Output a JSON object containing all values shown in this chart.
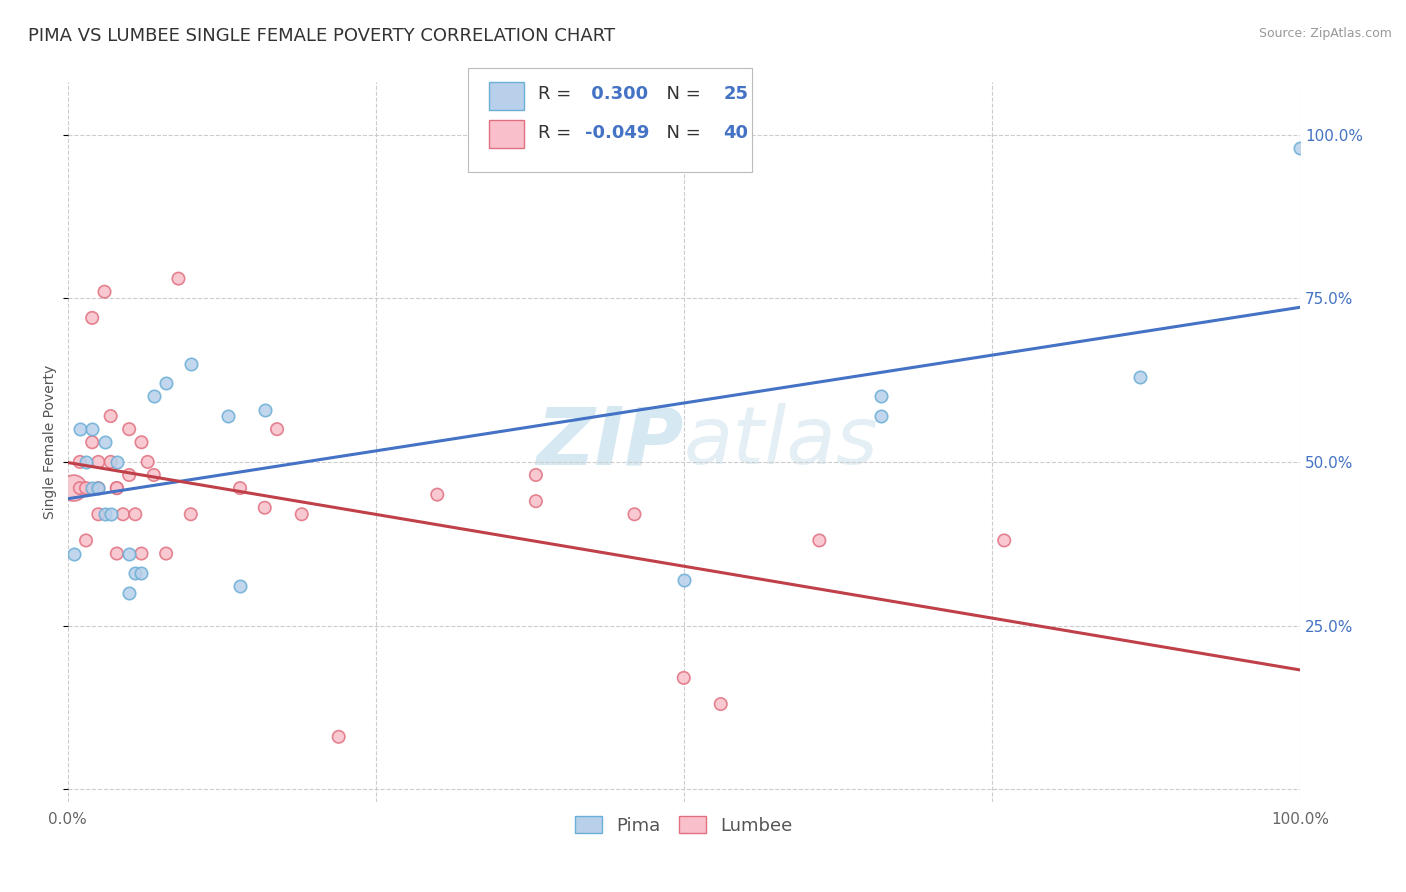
{
  "title": "PIMA VS LUMBEE SINGLE FEMALE POVERTY CORRELATION CHART",
  "source": "Source: ZipAtlas.com",
  "ylabel": "Single Female Poverty",
  "xlim": [
    0.0,
    1.0
  ],
  "ylim": [
    -0.02,
    1.08
  ],
  "xticks": [
    0.0,
    0.25,
    0.5,
    0.75,
    1.0
  ],
  "yticks": [
    0.0,
    0.25,
    0.5,
    0.75,
    1.0
  ],
  "xticklabels": [
    "0.0%",
    "",
    "",
    "",
    "100.0%"
  ],
  "yticklabels_right": [
    "",
    "25.0%",
    "50.0%",
    "75.0%",
    "100.0%"
  ],
  "watermark": "ZIPatlas",
  "pima_color": "#b8d0ea",
  "pima_edge_color": "#6baed6",
  "lumbee_color": "#f9c0cb",
  "lumbee_edge_color": "#e07080",
  "pima_line_color": "#4472c4",
  "lumbee_line_color": "#c0404a",
  "grid_color": "#cccccc",
  "legend_R_color": "#4472c4",
  "pima_R": 0.3,
  "pima_N": 25,
  "lumbee_R": -0.049,
  "lumbee_N": 40,
  "pima_scatter": [
    [
      0.005,
      0.36
    ],
    [
      0.01,
      0.55
    ],
    [
      0.015,
      0.5
    ],
    [
      0.02,
      0.55
    ],
    [
      0.02,
      0.46
    ],
    [
      0.025,
      0.46
    ],
    [
      0.03,
      0.53
    ],
    [
      0.03,
      0.42
    ],
    [
      0.035,
      0.42
    ],
    [
      0.04,
      0.5
    ],
    [
      0.05,
      0.36
    ],
    [
      0.05,
      0.3
    ],
    [
      0.055,
      0.33
    ],
    [
      0.06,
      0.33
    ],
    [
      0.07,
      0.6
    ],
    [
      0.08,
      0.62
    ],
    [
      0.1,
      0.65
    ],
    [
      0.13,
      0.57
    ],
    [
      0.14,
      0.31
    ],
    [
      0.16,
      0.58
    ],
    [
      0.5,
      0.32
    ],
    [
      0.66,
      0.57
    ],
    [
      0.66,
      0.6
    ],
    [
      0.87,
      0.63
    ],
    [
      1.0,
      0.98
    ]
  ],
  "lumbee_scatter": [
    [
      0.005,
      0.46
    ],
    [
      0.01,
      0.5
    ],
    [
      0.01,
      0.46
    ],
    [
      0.015,
      0.46
    ],
    [
      0.015,
      0.38
    ],
    [
      0.02,
      0.72
    ],
    [
      0.02,
      0.53
    ],
    [
      0.025,
      0.5
    ],
    [
      0.025,
      0.46
    ],
    [
      0.025,
      0.42
    ],
    [
      0.03,
      0.76
    ],
    [
      0.035,
      0.57
    ],
    [
      0.035,
      0.5
    ],
    [
      0.04,
      0.46
    ],
    [
      0.04,
      0.36
    ],
    [
      0.04,
      0.46
    ],
    [
      0.045,
      0.42
    ],
    [
      0.05,
      0.55
    ],
    [
      0.05,
      0.48
    ],
    [
      0.055,
      0.42
    ],
    [
      0.06,
      0.53
    ],
    [
      0.06,
      0.36
    ],
    [
      0.065,
      0.5
    ],
    [
      0.07,
      0.48
    ],
    [
      0.08,
      0.36
    ],
    [
      0.09,
      0.78
    ],
    [
      0.1,
      0.42
    ],
    [
      0.14,
      0.46
    ],
    [
      0.16,
      0.43
    ],
    [
      0.17,
      0.55
    ],
    [
      0.19,
      0.42
    ],
    [
      0.22,
      0.08
    ],
    [
      0.3,
      0.45
    ],
    [
      0.38,
      0.48
    ],
    [
      0.38,
      0.44
    ],
    [
      0.46,
      0.42
    ],
    [
      0.5,
      0.17
    ],
    [
      0.53,
      0.13
    ],
    [
      0.61,
      0.38
    ],
    [
      0.76,
      0.38
    ]
  ],
  "pima_size": 80,
  "lumbee_size": 80,
  "large_dot_index": 0,
  "large_dot_size": 350,
  "title_fontsize": 13,
  "axis_label_fontsize": 10,
  "tick_fontsize": 11,
  "legend_fontsize": 13
}
